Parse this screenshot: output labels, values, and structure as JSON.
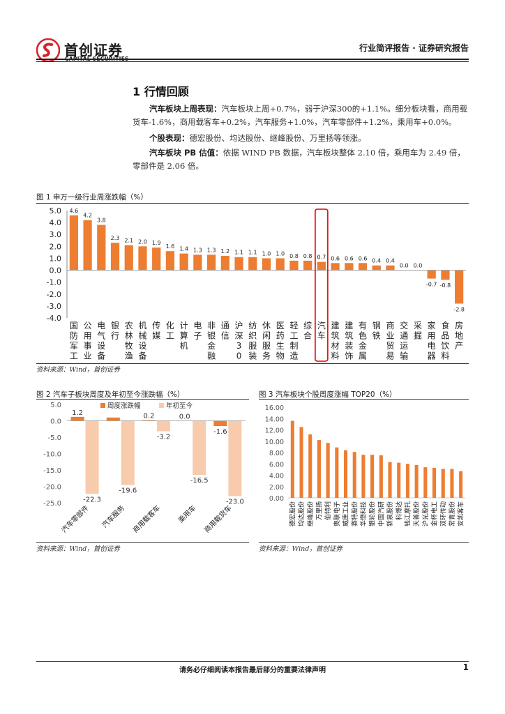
{
  "header": {
    "logo_cn": "首创证券",
    "logo_en": "CAPITAL SECURITIES",
    "report_type": "行业简评报告 · 证券研究报告",
    "brand_color": "#d8232a"
  },
  "section": {
    "title": "1 行情回顾",
    "paragraphs": [
      {
        "lead": "汽车板块上周表现：",
        "text": "汽车板块上周+0.7%，弱于沪深300的+1.1%。细分板块看，商用载货车-1.6%，商用载客车+0.2%，汽车服务+1.0%，汽车零部件+1.2%，乘用车+0.0%。"
      },
      {
        "lead": "个股表现：",
        "text": "德宏股份、均达股份、继峰股份、万里扬等领涨。"
      },
      {
        "lead": "汽车板块 PB 估值：",
        "text": "依据 WIND PB 数据，汽车板块整体 2.10 倍，乘用车为 2.49 倍，零部件是 2.06 倍。"
      }
    ]
  },
  "figure1": {
    "title": "图 1 申万一级行业周涨跌幅（%）",
    "source": "资料来源：Wind，首创证券",
    "bar_color": "#ed7d31",
    "highlight_color": "#e00000",
    "chart_data": {
      "type": "bar",
      "categories": [
        "国防军工",
        "公用事业",
        "电气设备",
        "银行",
        "农林牧渔",
        "机械设备",
        "传媒",
        "化工",
        "计算机",
        "电子",
        "非银金融",
        "通信",
        "沪深300",
        "纺织服装",
        "休闲服务",
        "医药生物",
        "轻工制造",
        "综合",
        "汽车",
        "建筑材料",
        "建筑装饰",
        "有色金属",
        "钢铁",
        "商业贸易",
        "交通运输",
        "采掘",
        "家用电器",
        "食品饮料",
        "房地产"
      ],
      "values": [
        4.6,
        4.2,
        3.8,
        2.3,
        2.1,
        2.0,
        1.9,
        1.6,
        1.4,
        1.3,
        1.3,
        1.2,
        1.1,
        1.1,
        1.0,
        1.0,
        0.8,
        0.8,
        0.7,
        0.6,
        0.6,
        0.6,
        0.4,
        0.4,
        0.0,
        0.0,
        -0.7,
        -0.8,
        -2.8
      ],
      "data_labels": [
        "4.6",
        "4.2",
        "3.8",
        "2.3",
        "2.1",
        "2.0",
        "1.9",
        "1.6",
        "1.4",
        "1.3",
        "1.3",
        "1.2",
        "1.1",
        "1.1",
        "1.0",
        "1.0",
        "0.8",
        "0.8",
        "0.7",
        "0.6",
        "0.6",
        "0.6",
        "0.4",
        "0.4",
        "0.0",
        "0.0",
        "-0.7",
        "-0.8",
        "-2.8"
      ],
      "highlight": "汽车",
      "ylim": [
        -4.0,
        5.0
      ],
      "yticks": [
        "5.0",
        "4.0",
        "3.0",
        "2.0",
        "1.0",
        "0.0",
        "-1.0",
        "-2.0",
        "-3.0",
        "-4.0"
      ],
      "grid": false
    }
  },
  "figure2": {
    "title": "图 2 汽车子板块周度及年初至今涨跌幅（%）",
    "source": "资料来源：Wind，首创证券",
    "chart_data": {
      "type": "bar",
      "categories": [
        "汽车零部件",
        "汽车服务",
        "商用载客车",
        "乘用车",
        "商用载货车"
      ],
      "series": [
        {
          "name": "周度涨跌幅",
          "values": [
            1.2,
            1.0,
            0.2,
            0.0,
            -1.6
          ],
          "labels": [
            "1.2",
            "",
            "0.2",
            "0.0",
            "-1.6"
          ],
          "color": "#ed7d31"
        },
        {
          "name": "年初至今",
          "values": [
            -22.3,
            -19.6,
            -3.2,
            -16.5,
            -23.0
          ],
          "labels": [
            "-22.3",
            "-19.6",
            "-3.2",
            "-16.5",
            "-23.0"
          ],
          "color": "#f8cbad"
        }
      ],
      "ylim": [
        -25.0,
        5.0
      ],
      "yticks": [
        "5.0",
        "0.0",
        "-5.0",
        "-10.0",
        "-15.0",
        "-20.0",
        "-25.0"
      ],
      "legend": "top"
    }
  },
  "figure3": {
    "title": "图 3 汽车板块个股周度涨幅 TOP20（%）",
    "source": "资料来源：Wind，首创证券",
    "chart_data": {
      "type": "bar",
      "categories": [
        "德宏股份",
        "均达股份",
        "继峰股份",
        "万里扬",
        "伯特利",
        "奥联电子",
        "威唐工业",
        "赛特股份",
        "华懋科技",
        "银轮股份",
        "中国汽研",
        "新泉股份",
        "科博达",
        "钱江摩托",
        "天普股份",
        "沪光股份",
        "金杯电工",
        "双环传动",
        "常青股份",
        "安凯客车"
      ],
      "values": [
        13.6,
        12.5,
        11.2,
        10.2,
        9.7,
        8.9,
        8.4,
        8.1,
        7.6,
        7.6,
        7.5,
        6.3,
        6.2,
        6.0,
        5.8,
        5.4,
        5.3,
        5.1,
        5.1,
        4.7
      ],
      "color": "#ed7d31",
      "ylim": [
        0,
        16
      ],
      "yticks": [
        "16.00",
        "14.00",
        "12.00",
        "10.00",
        "8.00",
        "6.00",
        "4.00",
        "2.00",
        "0.00"
      ]
    }
  },
  "footer": {
    "disclaimer": "请务必仔细阅读本报告最后部分的重要法律声明",
    "page_number": "1"
  }
}
